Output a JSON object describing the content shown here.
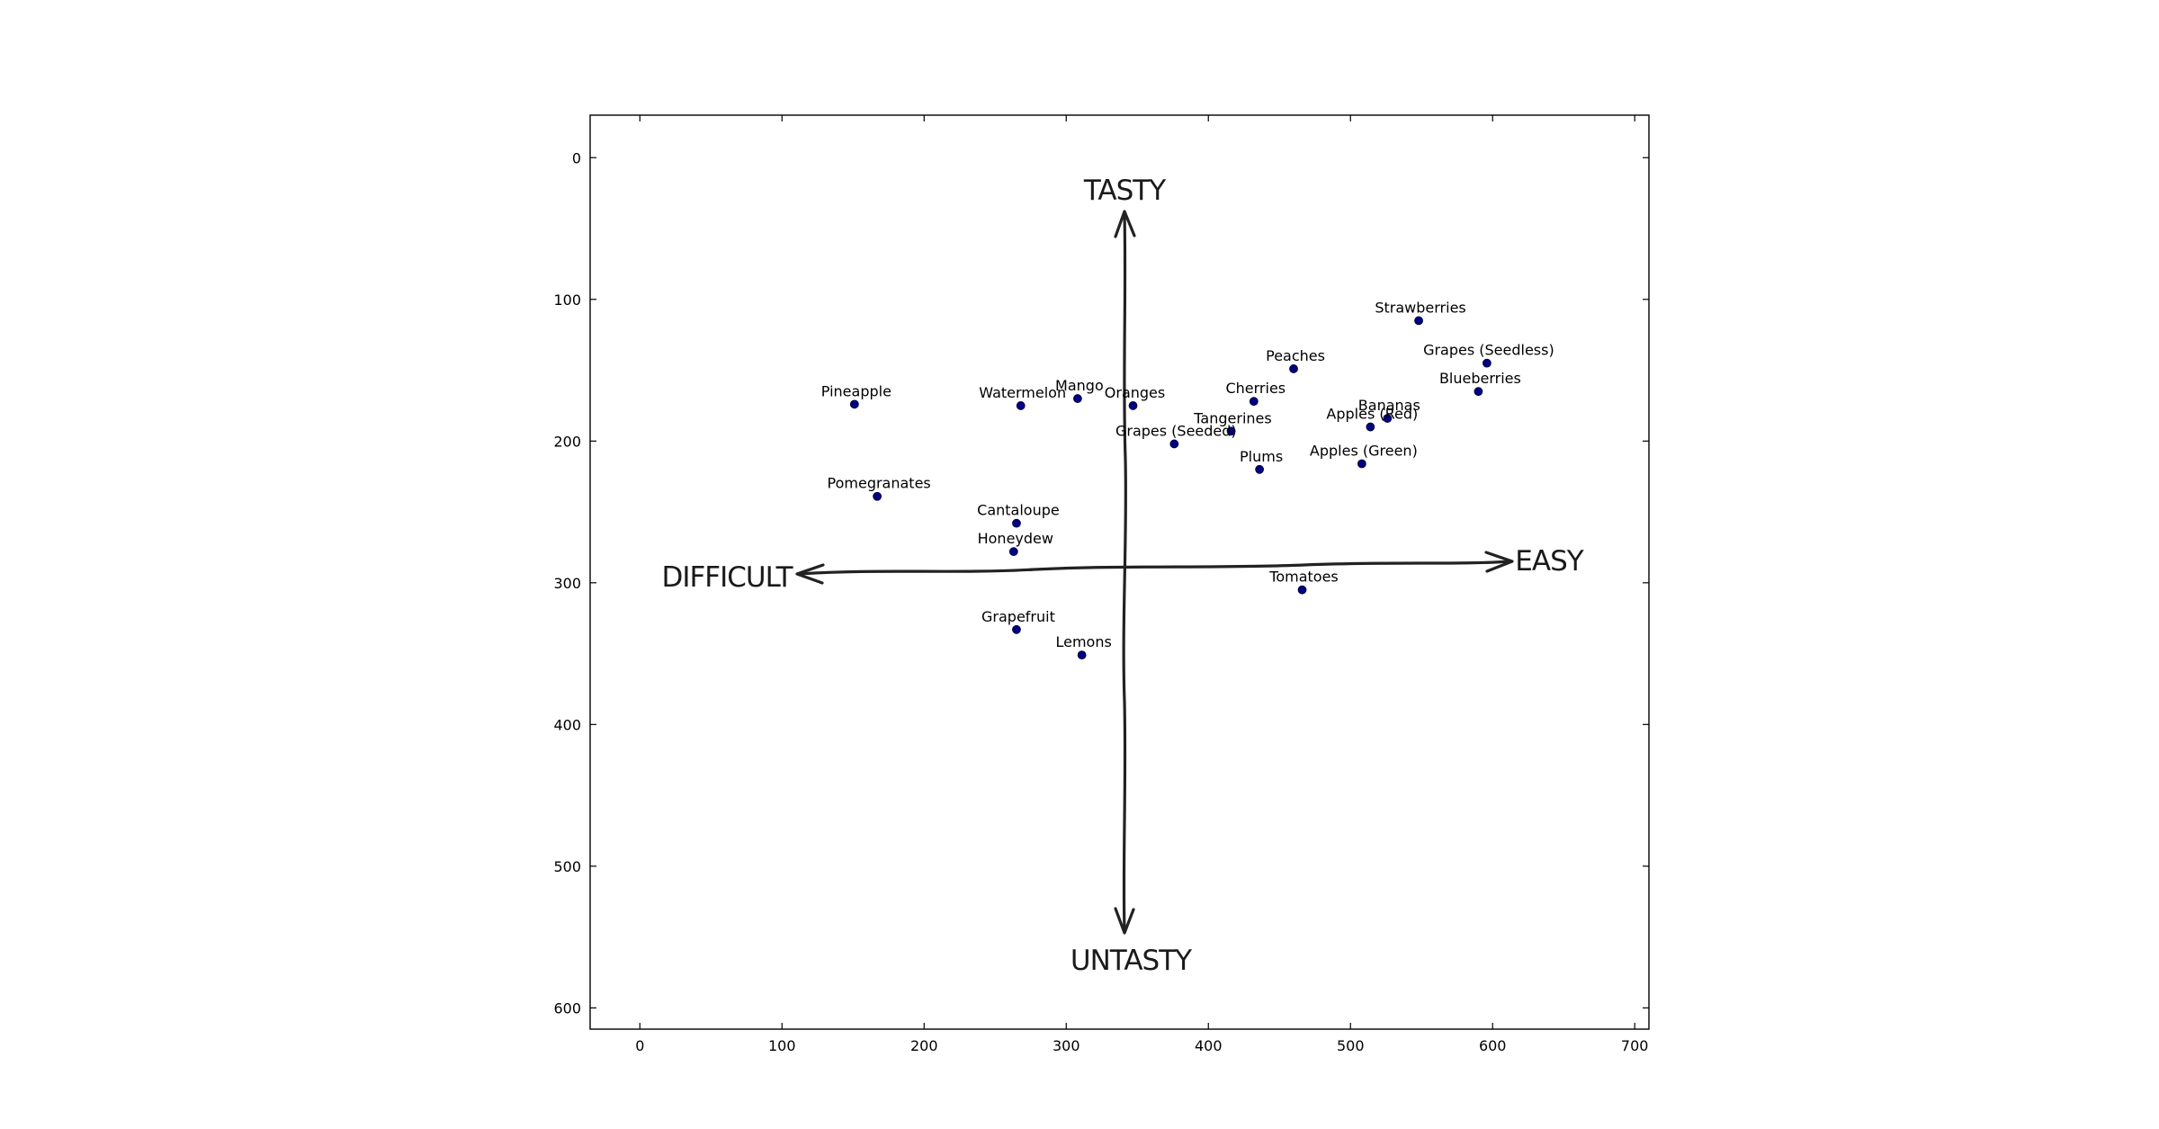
{
  "chart_data": {
    "type": "scatter",
    "title": "",
    "xlabel": "",
    "ylabel": "",
    "xlim": [
      -35,
      710
    ],
    "ylim": [
      615,
      -30
    ],
    "y_inverted": true,
    "grid": false,
    "x_ticks": [
      0,
      100,
      200,
      300,
      400,
      500,
      600,
      700
    ],
    "y_ticks": [
      0,
      100,
      200,
      300,
      400,
      500,
      600
    ],
    "marker_color": "#000080",
    "axis_labels_image": {
      "top": "TASTY",
      "bottom": "UNTASTY",
      "left": "DIFFICULT",
      "right": "EASY"
    },
    "points": [
      {
        "label": "Strawberries",
        "x": 548,
        "y": 115
      },
      {
        "label": "Grapes (Seedless)",
        "x": 596,
        "y": 145
      },
      {
        "label": "Blueberries",
        "x": 590,
        "y": 165
      },
      {
        "label": "Peaches",
        "x": 460,
        "y": 149
      },
      {
        "label": "Cherries",
        "x": 432,
        "y": 172
      },
      {
        "label": "Bananas",
        "x": 526,
        "y": 184
      },
      {
        "label": "Apples (Red)",
        "x": 514,
        "y": 190
      },
      {
        "label": "Tangerines",
        "x": 416,
        "y": 193
      },
      {
        "label": "Grapes (Seeded)",
        "x": 376,
        "y": 202
      },
      {
        "label": "Apples (Green)",
        "x": 508,
        "y": 216
      },
      {
        "label": "Plums",
        "x": 436,
        "y": 220
      },
      {
        "label": "Oranges",
        "x": 347,
        "y": 175
      },
      {
        "label": "Mango",
        "x": 308,
        "y": 170
      },
      {
        "label": "Watermelon",
        "x": 268,
        "y": 175
      },
      {
        "label": "Pineapple",
        "x": 151,
        "y": 174
      },
      {
        "label": "Pomegranates",
        "x": 167,
        "y": 239
      },
      {
        "label": "Cantaloupe",
        "x": 265,
        "y": 258
      },
      {
        "label": "Honeydew",
        "x": 263,
        "y": 278
      },
      {
        "label": "Tomatoes",
        "x": 466,
        "y": 305
      },
      {
        "label": "Grapefruit",
        "x": 265,
        "y": 333
      },
      {
        "label": "Lemons",
        "x": 311,
        "y": 351
      }
    ]
  }
}
